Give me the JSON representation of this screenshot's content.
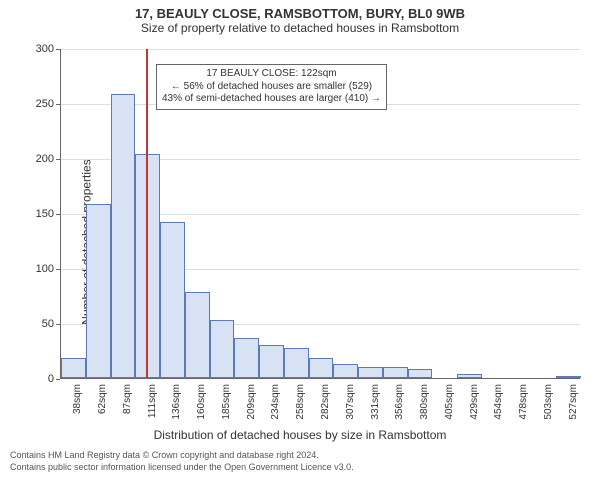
{
  "title": "17, BEAULY CLOSE, RAMSBOTTOM, BURY, BL0 9WB",
  "subtitle": "Size of property relative to detached houses in Ramsbottom",
  "title_fontsize": 13,
  "subtitle_fontsize": 12,
  "chart": {
    "type": "histogram",
    "ylabel": "Number of detached properties",
    "xlabel": "Distribution of detached houses by size in Ramsbottom",
    "label_fontsize": 12,
    "ylim": [
      0,
      300
    ],
    "ytick_step": 50,
    "background_color": "#ffffff",
    "grid_color": "#dddddd",
    "axis_color": "#666666",
    "bar_fill": "#d7e2f4",
    "bar_border": "#5b7bb5",
    "ref_line_color": "#c0392b",
    "ref_value_sqm": 122,
    "bin_width_sqm": 24.5,
    "x_start_sqm": 38,
    "categories": [
      "38sqm",
      "62sqm",
      "87sqm",
      "111sqm",
      "136sqm",
      "160sqm",
      "185sqm",
      "209sqm",
      "234sqm",
      "258sqm",
      "282sqm",
      "307sqm",
      "331sqm",
      "356sqm",
      "380sqm",
      "405sqm",
      "429sqm",
      "454sqm",
      "478sqm",
      "503sqm",
      "527sqm"
    ],
    "values": [
      18,
      158,
      258,
      204,
      142,
      78,
      53,
      36,
      30,
      27,
      18,
      13,
      10,
      10,
      8,
      0,
      4,
      0,
      0,
      0,
      2
    ],
    "xtick_fontsize": 10,
    "ytick_fontsize": 11
  },
  "annotation": {
    "line1": "17 BEAULY CLOSE: 122sqm",
    "line2": "← 56% of detached houses are smaller (529)",
    "line3": "43% of semi-detached houses are larger (410) →",
    "fontsize": 10,
    "border_color": "#666666",
    "background": "#ffffff"
  },
  "footer": {
    "line1": "Contains HM Land Registry data © Crown copyright and database right 2024.",
    "line2": "Contains public sector information licensed under the Open Government Licence v3.0.",
    "fontsize": 9,
    "color": "#555555"
  }
}
